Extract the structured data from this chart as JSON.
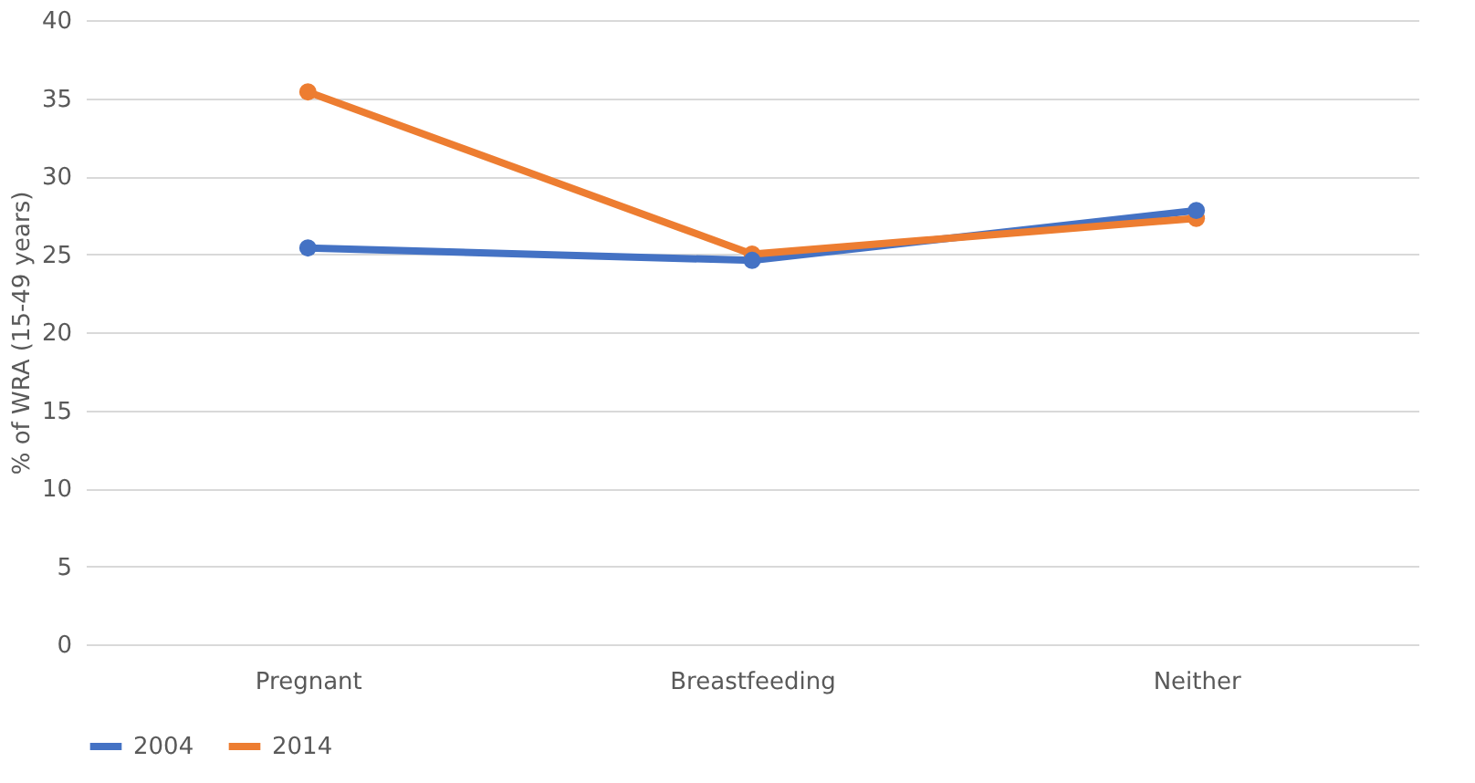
{
  "chart_data": {
    "type": "line",
    "ylabel": "% of WRA (15-49 years)",
    "categories": [
      "Pregnant",
      "Breastfeeding",
      "Neither"
    ],
    "series": [
      {
        "name": "2004",
        "color": "#4472c4",
        "values": [
          25.4,
          24.6,
          27.8
        ]
      },
      {
        "name": "2014",
        "color": "#ed7d31",
        "values": [
          35.4,
          25.0,
          27.3
        ]
      }
    ],
    "ylim": [
      0,
      40
    ],
    "yticks": [
      0,
      5,
      10,
      15,
      20,
      25,
      30,
      35,
      40
    ],
    "grid": "y",
    "legend": "bottom",
    "marker": "circle",
    "line_style": "solid"
  }
}
